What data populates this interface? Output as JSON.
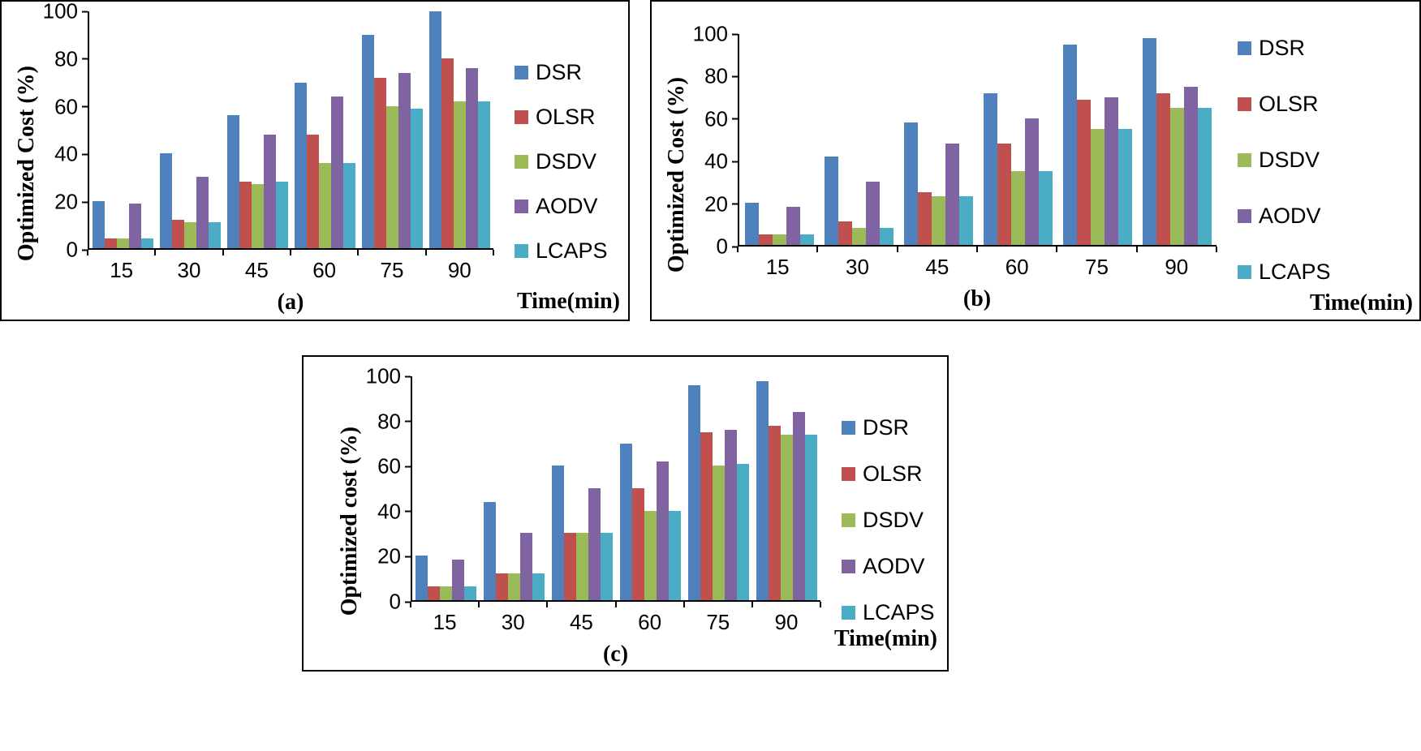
{
  "chart_data": [
    {
      "type": "bar",
      "caption": "(a)",
      "ylabel": "Optimized Cost (%)",
      "xlabel": "Time(min)",
      "categories": [
        "15",
        "30",
        "45",
        "60",
        "75",
        "90"
      ],
      "ylim": [
        0,
        100
      ],
      "yticks": [
        100,
        80,
        60,
        40,
        20,
        0
      ],
      "grid": false,
      "legend_position": "right",
      "series": [
        {
          "name": "DSR",
          "color": "#4f81bd",
          "values": [
            20,
            40,
            56,
            70,
            90,
            100
          ]
        },
        {
          "name": "OLSR",
          "color": "#c0504d",
          "values": [
            4,
            12,
            28,
            48,
            72,
            80
          ]
        },
        {
          "name": "DSDV",
          "color": "#9bbb59",
          "values": [
            4,
            11,
            27,
            36,
            60,
            62
          ]
        },
        {
          "name": "AODV",
          "color": "#8064a2",
          "values": [
            19,
            30,
            48,
            64,
            74,
            76
          ]
        },
        {
          "name": "LCAPS",
          "color": "#4bacc6",
          "values": [
            4,
            11,
            28,
            36,
            59,
            62
          ]
        }
      ]
    },
    {
      "type": "bar",
      "caption": "(b)",
      "ylabel": "Optimized Cost (%)",
      "xlabel": "Time(min)",
      "categories": [
        "15",
        "30",
        "45",
        "60",
        "75",
        "90"
      ],
      "ylim": [
        0,
        100
      ],
      "yticks": [
        100,
        80,
        60,
        40,
        20,
        0
      ],
      "grid": false,
      "legend_position": "right",
      "series": [
        {
          "name": "DSR",
          "color": "#4f81bd",
          "values": [
            20,
            42,
            58,
            72,
            95,
            98
          ]
        },
        {
          "name": "OLSR",
          "color": "#c0504d",
          "values": [
            5,
            11,
            25,
            48,
            69,
            72
          ]
        },
        {
          "name": "DSDV",
          "color": "#9bbb59",
          "values": [
            5,
            8,
            23,
            35,
            55,
            65
          ]
        },
        {
          "name": "AODV",
          "color": "#8064a2",
          "values": [
            18,
            30,
            48,
            60,
            70,
            75
          ]
        },
        {
          "name": "LCAPS",
          "color": "#4bacc6",
          "values": [
            5,
            8,
            23,
            35,
            55,
            65
          ]
        }
      ]
    },
    {
      "type": "bar",
      "caption": "(c)",
      "ylabel": "Optimized cost (%)",
      "xlabel": "Time(min)",
      "categories": [
        "15",
        "30",
        "45",
        "60",
        "75",
        "90"
      ],
      "ylim": [
        0,
        100
      ],
      "yticks": [
        100,
        80,
        60,
        40,
        20,
        0
      ],
      "grid": false,
      "legend_position": "right",
      "series": [
        {
          "name": "DSR",
          "color": "#4f81bd",
          "values": [
            20,
            44,
            60,
            70,
            96,
            98
          ]
        },
        {
          "name": "OLSR",
          "color": "#c0504d",
          "values": [
            6,
            12,
            30,
            50,
            75,
            78
          ]
        },
        {
          "name": "DSDV",
          "color": "#9bbb59",
          "values": [
            6,
            12,
            30,
            40,
            60,
            74
          ]
        },
        {
          "name": "AODV",
          "color": "#8064a2",
          "values": [
            18,
            30,
            50,
            62,
            76,
            84
          ]
        },
        {
          "name": "LCAPS",
          "color": "#4bacc6",
          "values": [
            6,
            12,
            30,
            40,
            61,
            74
          ]
        }
      ]
    }
  ]
}
